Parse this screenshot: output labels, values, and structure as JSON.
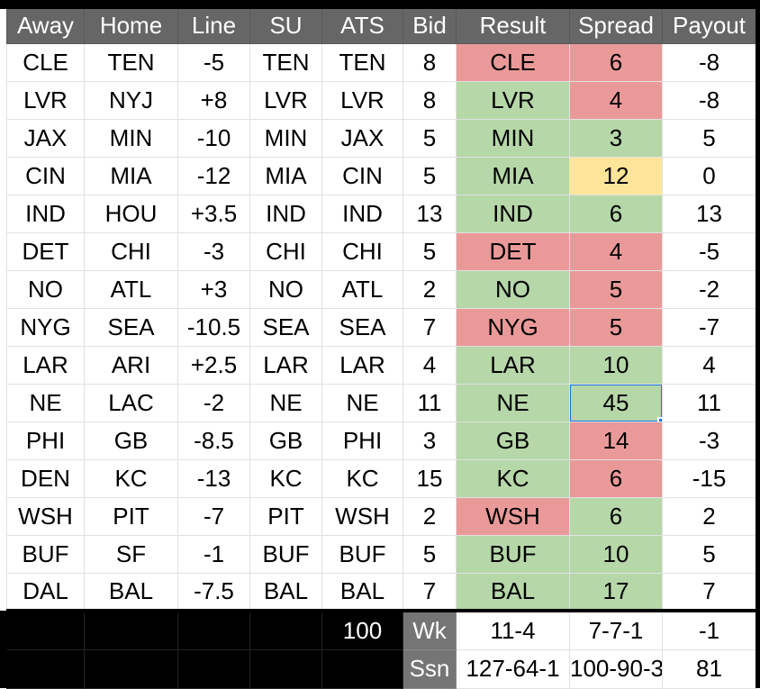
{
  "header": {
    "columns": [
      "Away",
      "Home",
      "Line",
      "SU",
      "ATS",
      "Bid",
      "Result",
      "Spread",
      "Payout"
    ]
  },
  "rows": [
    {
      "away": "CLE",
      "home": "TEN",
      "line": "-5",
      "su": "TEN",
      "ats": "TEN",
      "bid": "8",
      "result": "CLE",
      "result_color": "red",
      "spread": "6",
      "spread_color": "red",
      "payout": "-8"
    },
    {
      "away": "LVR",
      "home": "NYJ",
      "line": "+8",
      "su": "LVR",
      "ats": "LVR",
      "bid": "8",
      "result": "LVR",
      "result_color": "green",
      "spread": "4",
      "spread_color": "red",
      "payout": "-8"
    },
    {
      "away": "JAX",
      "home": "MIN",
      "line": "-10",
      "su": "MIN",
      "ats": "JAX",
      "bid": "5",
      "result": "MIN",
      "result_color": "green",
      "spread": "3",
      "spread_color": "green",
      "payout": "5"
    },
    {
      "away": "CIN",
      "home": "MIA",
      "line": "-12",
      "su": "MIA",
      "ats": "CIN",
      "bid": "5",
      "result": "MIA",
      "result_color": "green",
      "spread": "12",
      "spread_color": "yellow",
      "payout": "0"
    },
    {
      "away": "IND",
      "home": "HOU",
      "line": "+3.5",
      "su": "IND",
      "ats": "IND",
      "bid": "13",
      "result": "IND",
      "result_color": "green",
      "spread": "6",
      "spread_color": "green",
      "payout": "13"
    },
    {
      "away": "DET",
      "home": "CHI",
      "line": "-3",
      "su": "CHI",
      "ats": "CHI",
      "bid": "5",
      "result": "DET",
      "result_color": "red",
      "spread": "4",
      "spread_color": "red",
      "payout": "-5"
    },
    {
      "away": "NO",
      "home": "ATL",
      "line": "+3",
      "su": "NO",
      "ats": "ATL",
      "bid": "2",
      "result": "NO",
      "result_color": "green",
      "spread": "5",
      "spread_color": "red",
      "payout": "-2"
    },
    {
      "away": "NYG",
      "home": "SEA",
      "line": "-10.5",
      "su": "SEA",
      "ats": "SEA",
      "bid": "7",
      "result": "NYG",
      "result_color": "red",
      "spread": "5",
      "spread_color": "red",
      "payout": "-7"
    },
    {
      "away": "LAR",
      "home": "ARI",
      "line": "+2.5",
      "su": "LAR",
      "ats": "LAR",
      "bid": "4",
      "result": "LAR",
      "result_color": "green",
      "spread": "10",
      "spread_color": "green",
      "payout": "4"
    },
    {
      "away": "NE",
      "home": "LAC",
      "line": "-2",
      "su": "NE",
      "ats": "NE",
      "bid": "11",
      "result": "NE",
      "result_color": "green",
      "spread": "45",
      "spread_color": "green",
      "payout": "11"
    },
    {
      "away": "PHI",
      "home": "GB",
      "line": "-8.5",
      "su": "GB",
      "ats": "PHI",
      "bid": "3",
      "result": "GB",
      "result_color": "green",
      "spread": "14",
      "spread_color": "red",
      "payout": "-3"
    },
    {
      "away": "DEN",
      "home": "KC",
      "line": "-13",
      "su": "KC",
      "ats": "KC",
      "bid": "15",
      "result": "KC",
      "result_color": "green",
      "spread": "6",
      "spread_color": "red",
      "payout": "-15"
    },
    {
      "away": "WSH",
      "home": "PIT",
      "line": "-7",
      "su": "PIT",
      "ats": "WSH",
      "bid": "2",
      "result": "WSH",
      "result_color": "red",
      "spread": "6",
      "spread_color": "green",
      "payout": "2"
    },
    {
      "away": "BUF",
      "home": "SF",
      "line": "-1",
      "su": "BUF",
      "ats": "BUF",
      "bid": "5",
      "result": "BUF",
      "result_color": "green",
      "spread": "10",
      "spread_color": "green",
      "payout": "5"
    },
    {
      "away": "DAL",
      "home": "BAL",
      "line": "-7.5",
      "su": "BAL",
      "ats": "BAL",
      "bid": "7",
      "result": "BAL",
      "result_color": "green",
      "spread": "17",
      "spread_color": "green",
      "payout": "7"
    }
  ],
  "selection": {
    "row_index": 9,
    "column": "spread",
    "value": "45"
  },
  "footer": {
    "week": {
      "bid_total": "100",
      "label": "Wk",
      "result": "11-4",
      "spread": "7-7-1",
      "payout": "-1"
    },
    "season": {
      "label": "Ssn",
      "result": "127-64-1",
      "spread": "100-90-3",
      "payout": "81"
    }
  },
  "colors": {
    "green": "#b6d7a8",
    "red": "#ea9999",
    "yellow": "#ffe599",
    "header": "#666666",
    "label": "#757575",
    "blue": "#1a73e8",
    "gridline": "#e1e1e1"
  }
}
